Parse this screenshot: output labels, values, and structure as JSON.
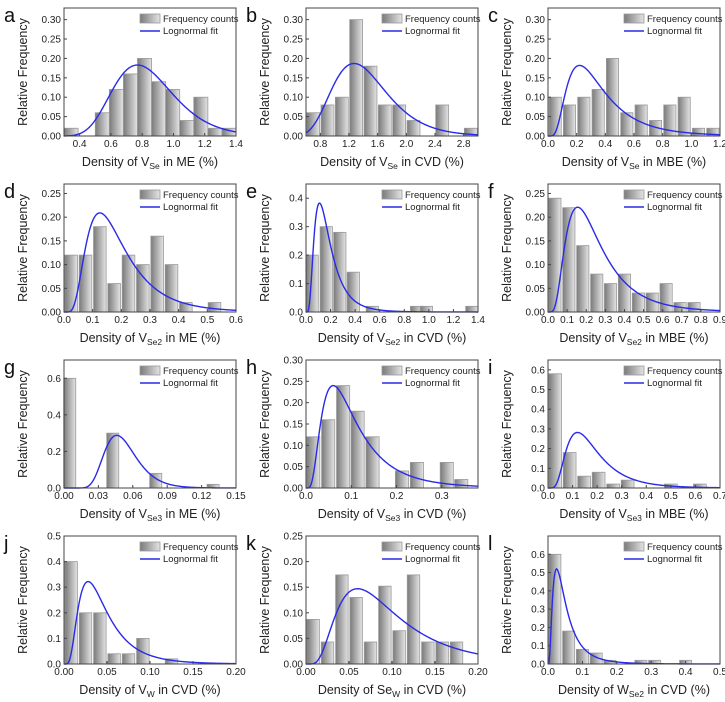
{
  "legend": {
    "bars": "Frequency counts",
    "fit": "Lognormal fit"
  },
  "colors": {
    "fit": "#2a2ae8",
    "bar_dark": "#7a7a7a",
    "bar_light": "#e4e4e4",
    "bar_edge": "#9a9a9a"
  },
  "chart_data": [
    {
      "panel": "a",
      "type": "bar",
      "ylabel": "Relative Frequency",
      "xlabel": {
        "pre": "Density of V",
        "sub": "Se",
        "post": " in ME (%)"
      },
      "xlim": [
        0.3,
        1.4
      ],
      "ylim": [
        0,
        0.33
      ],
      "xticks": [
        "0.4",
        "0.6",
        "0.8",
        "1.0",
        "1.2",
        "1.4"
      ],
      "yticks": [
        "0.00",
        "0.05",
        "0.10",
        "0.15",
        "0.20",
        "0.25",
        "0.30"
      ],
      "bin_width": 0.09,
      "x": [
        0.345,
        0.545,
        0.635,
        0.725,
        0.815,
        0.905,
        0.995,
        1.085,
        1.175,
        1.265,
        1.355
      ],
      "values": [
        0.02,
        0.06,
        0.12,
        0.16,
        0.2,
        0.14,
        0.12,
        0.04,
        0.1,
        0.02,
        0.02
      ],
      "fit": {
        "mode": 0.77,
        "peak": 0.183,
        "sigma": 0.25
      }
    },
    {
      "panel": "b",
      "type": "bar",
      "ylabel": "Relative Frequency",
      "xlabel": {
        "pre": "Density of V",
        "sub": "Se",
        "post": " in CVD (%)"
      },
      "xlim": [
        0.6,
        3.0
      ],
      "ylim": [
        0,
        0.33
      ],
      "xticks": [
        "0.8",
        "1.2",
        "1.6",
        "2.0",
        "2.4",
        "2.8"
      ],
      "yticks": [
        "0.00",
        "0.05",
        "0.10",
        "0.15",
        "0.20",
        "0.25",
        "0.30"
      ],
      "bin_width": 0.18,
      "x": [
        0.7,
        0.9,
        1.1,
        1.3,
        1.5,
        1.7,
        1.9,
        2.1,
        2.5,
        2.9
      ],
      "values": [
        0.06,
        0.08,
        0.1,
        0.3,
        0.18,
        0.08,
        0.08,
        0.04,
        0.08,
        0.02
      ],
      "fit": {
        "mode": 1.27,
        "peak": 0.187,
        "sigma": 0.3
      }
    },
    {
      "panel": "c",
      "type": "bar",
      "ylabel": "Relative Frequency",
      "xlabel": {
        "pre": "Density of V",
        "sub": "Se",
        "post": " in MBE (%)"
      },
      "xlim": [
        0,
        1.2
      ],
      "ylim": [
        0,
        0.33
      ],
      "xticks": [
        "0.0",
        "0.2",
        "0.4",
        "0.6",
        "0.8",
        "1.0",
        "1.2"
      ],
      "yticks": [
        "0.00",
        "0.05",
        "0.10",
        "0.15",
        "0.20",
        "0.25",
        "0.30"
      ],
      "bin_width": 0.085,
      "x": [
        0.05,
        0.15,
        0.25,
        0.35,
        0.45,
        0.55,
        0.65,
        0.75,
        0.85,
        0.95,
        1.05,
        1.15
      ],
      "values": [
        0.1,
        0.08,
        0.1,
        0.12,
        0.2,
        0.06,
        0.08,
        0.04,
        0.08,
        0.1,
        0.02,
        0.02
      ],
      "fit": {
        "mode": 0.22,
        "peak": 0.182,
        "sigma": 0.6
      }
    },
    {
      "panel": "d",
      "type": "bar",
      "ylabel": "Relative Frequency",
      "xlabel": {
        "pre": "Density of V",
        "sub": "Se2",
        "post": " in ME (%)"
      },
      "xlim": [
        0,
        0.6
      ],
      "ylim": [
        0,
        0.27
      ],
      "xticks": [
        "0.0",
        "0.1",
        "0.2",
        "0.3",
        "0.4",
        "0.5",
        "0.6"
      ],
      "yticks": [
        "0.00",
        "0.05",
        "0.10",
        "0.15",
        "0.20",
        "0.25"
      ],
      "bin_width": 0.044,
      "x": [
        0.025,
        0.075,
        0.125,
        0.175,
        0.225,
        0.275,
        0.325,
        0.375,
        0.425,
        0.525
      ],
      "values": [
        0.12,
        0.12,
        0.18,
        0.06,
        0.12,
        0.1,
        0.16,
        0.1,
        0.02,
        0.02
      ],
      "fit": {
        "mode": 0.125,
        "peak": 0.209,
        "sigma": 0.55
      }
    },
    {
      "panel": "e",
      "type": "bar",
      "ylabel": "Relative Frequency",
      "xlabel": {
        "pre": "Density of V",
        "sub": "Se2",
        "post": " in CVD (%)"
      },
      "xlim": [
        0,
        1.4
      ],
      "ylim": [
        0,
        0.45
      ],
      "xticks": [
        "0.0",
        "0.2",
        "0.4",
        "0.6",
        "0.8",
        "1.0",
        "1.2",
        "1.4"
      ],
      "yticks": [
        "0.0",
        "0.1",
        "0.2",
        "0.3",
        "0.4"
      ],
      "bin_width": 0.1,
      "x": [
        0.05,
        0.165,
        0.275,
        0.385,
        0.54,
        0.9,
        0.98,
        1.35
      ],
      "values": [
        0.2,
        0.3,
        0.28,
        0.14,
        0.02,
        0.02,
        0.02,
        0.02
      ],
      "fit": {
        "mode": 0.11,
        "peak": 0.383,
        "sigma": 0.6
      }
    },
    {
      "panel": "f",
      "type": "bar",
      "ylabel": "Relative Frequency",
      "xlabel": {
        "pre": "Density of V",
        "sub": "Se2",
        "post": " in MBE (%)"
      },
      "xlim": [
        0,
        0.9
      ],
      "ylim": [
        0,
        0.27
      ],
      "xticks": [
        "0.0",
        "0.1",
        "0.2",
        "0.3",
        "0.4",
        "0.5",
        "0.6",
        "0.7",
        "0.8",
        "0.9"
      ],
      "yticks": [
        "0.00",
        "0.05",
        "0.10",
        "0.15",
        "0.20",
        "0.25"
      ],
      "bin_width": 0.064,
      "x": [
        0.036,
        0.109,
        0.182,
        0.255,
        0.327,
        0.4,
        0.473,
        0.545,
        0.618,
        0.691,
        0.764
      ],
      "values": [
        0.24,
        0.22,
        0.14,
        0.08,
        0.06,
        0.08,
        0.04,
        0.04,
        0.06,
        0.02,
        0.02
      ],
      "fit": {
        "mode": 0.155,
        "peak": 0.221,
        "sigma": 0.6
      }
    },
    {
      "panel": "g",
      "type": "bar",
      "ylabel": "Relative Frequency",
      "xlabel": {
        "pre": "Density of V",
        "sub": "Se3",
        "post": " in ME (%)"
      },
      "xlim": [
        0,
        0.15
      ],
      "ylim": [
        0,
        0.7
      ],
      "xticks": [
        "0.00",
        "0.03",
        "0.06",
        "0.09",
        "0.12",
        "0.15"
      ],
      "yticks": [
        "0.0",
        "0.2",
        "0.4",
        "0.6"
      ],
      "bin_width": 0.0105,
      "x": [
        0.005,
        0.0425,
        0.08,
        0.13
      ],
      "values": [
        0.6,
        0.3,
        0.08,
        0.02
      ],
      "fit": {
        "mode": 0.046,
        "peak": 0.288,
        "sigma": 0.3
      }
    },
    {
      "panel": "h",
      "type": "bar",
      "ylabel": "Relative Frequency",
      "xlabel": {
        "pre": "Density of V",
        "sub": "Se3",
        "post": " in CVD (%)"
      },
      "xlim": [
        0,
        0.38
      ],
      "ylim": [
        0,
        0.3
      ],
      "xticks": [
        "0.0",
        "0.1",
        "0.2",
        "0.3"
      ],
      "yticks": [
        "0.00",
        "0.05",
        "0.10",
        "0.15",
        "0.20",
        "0.25",
        "0.30"
      ],
      "bin_width": 0.029,
      "x": [
        0.016,
        0.049,
        0.082,
        0.114,
        0.147,
        0.212,
        0.245,
        0.311,
        0.343
      ],
      "values": [
        0.12,
        0.16,
        0.24,
        0.18,
        0.12,
        0.04,
        0.06,
        0.06,
        0.02
      ],
      "fit": {
        "mode": 0.06,
        "peak": 0.24,
        "sigma": 0.65
      }
    },
    {
      "panel": "i",
      "type": "bar",
      "ylabel": "Relative Frequency",
      "xlabel": {
        "pre": "Density of V",
        "sub": "Se3",
        "post": " in MBE (%)"
      },
      "xlim": [
        0,
        0.7
      ],
      "ylim": [
        0,
        0.65
      ],
      "xticks": [
        "0.0",
        "0.1",
        "0.2",
        "0.3",
        "0.4",
        "0.5",
        "0.6",
        "0.7"
      ],
      "yticks": [
        "0.0",
        "0.1",
        "0.2",
        "0.3",
        "0.4",
        "0.5",
        "0.6"
      ],
      "bin_width": 0.052,
      "x": [
        0.029,
        0.088,
        0.147,
        0.206,
        0.265,
        0.324,
        0.5,
        0.618
      ],
      "values": [
        0.58,
        0.18,
        0.06,
        0.08,
        0.02,
        0.04,
        0.02,
        0.02
      ],
      "fit": {
        "mode": 0.12,
        "peak": 0.282,
        "sigma": 0.55
      }
    },
    {
      "panel": "j",
      "type": "bar",
      "ylabel": "Relative Frequency",
      "xlabel": {
        "pre": "Density of V",
        "sub": "W",
        "post": " in CVD (%)"
      },
      "xlim": [
        0,
        0.2
      ],
      "ylim": [
        0,
        0.5
      ],
      "xticks": [
        "0.00",
        "0.05",
        "0.10",
        "0.15",
        "0.20"
      ],
      "yticks": [
        "0.0",
        "0.1",
        "0.2",
        "0.3",
        "0.4",
        "0.5"
      ],
      "bin_width": 0.0145,
      "x": [
        0.0083,
        0.025,
        0.0417,
        0.0583,
        0.075,
        0.0917,
        0.125
      ],
      "values": [
        0.4,
        0.2,
        0.2,
        0.04,
        0.04,
        0.1,
        0.02
      ],
      "fit": {
        "mode": 0.028,
        "peak": 0.322,
        "sigma": 0.6
      }
    },
    {
      "panel": "k",
      "type": "bar",
      "ylabel": "Relative Frequency",
      "xlabel": {
        "pre": "Density of Se",
        "sub": "W",
        "post": " in CVD (%)"
      },
      "xlim": [
        0,
        0.2
      ],
      "ylim": [
        0,
        0.25
      ],
      "xticks": [
        "0.00",
        "0.05",
        "0.10",
        "0.15",
        "0.20"
      ],
      "yticks": [
        "0.00",
        "0.05",
        "0.10",
        "0.15",
        "0.20",
        "0.25"
      ],
      "bin_width": 0.0145,
      "x": [
        0.0083,
        0.025,
        0.0417,
        0.0583,
        0.075,
        0.0917,
        0.1083,
        0.125,
        0.1417,
        0.1583,
        0.175
      ],
      "values": [
        0.087,
        0.043,
        0.174,
        0.13,
        0.043,
        0.152,
        0.065,
        0.174,
        0.043,
        0.043,
        0.043
      ],
      "fit": {
        "mode": 0.06,
        "peak": 0.147,
        "sigma": 0.6
      }
    },
    {
      "panel": "l",
      "type": "bar",
      "ylabel": "Relative Frequency",
      "xlabel": {
        "pre": "Density of W",
        "sub": "Se2",
        "post": " in CVD (%)"
      },
      "xlim": [
        0,
        0.5
      ],
      "ylim": [
        0,
        0.7
      ],
      "xticks": [
        "0.0",
        "0.1",
        "0.2",
        "0.3",
        "0.4",
        "0.5"
      ],
      "yticks": [
        "0.0",
        "0.1",
        "0.2",
        "0.3",
        "0.4",
        "0.5",
        "0.6"
      ],
      "bin_width": 0.035,
      "x": [
        0.02,
        0.06,
        0.1,
        0.14,
        0.18,
        0.27,
        0.31,
        0.4
      ],
      "values": [
        0.6,
        0.18,
        0.08,
        0.06,
        0.02,
        0.02,
        0.02,
        0.02
      ],
      "fit": {
        "mode": 0.025,
        "peak": 0.52,
        "sigma": 0.75
      }
    }
  ]
}
